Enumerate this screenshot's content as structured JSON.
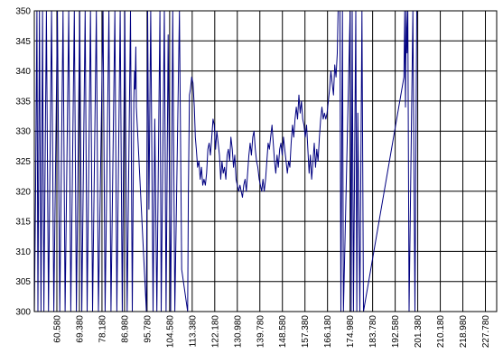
{
  "chart_data": {
    "type": "line",
    "title": "",
    "xlabel": "",
    "ylabel": "",
    "ylim": [
      300,
      350
    ],
    "y_ticks": [
      300,
      305,
      310,
      315,
      320,
      325,
      330,
      335,
      340,
      345,
      350
    ],
    "x_tick_labels": [
      "60.580",
      "69.380",
      "78.180",
      "86.980",
      "95.780",
      "104.580",
      "113.380",
      "122.180",
      "130.980",
      "139.780",
      "148.580",
      "157.380",
      "166.180",
      "174.980",
      "183.780",
      "192.580",
      "201.380",
      "210.180",
      "218.980",
      "227.780"
    ],
    "xlim": [
      51.78,
      232.18
    ],
    "grid": true,
    "legend": "none",
    "series": [
      {
        "color": "#000080",
        "points": [
          [
            51.8,
            300
          ],
          [
            52.3,
            321
          ],
          [
            52.8,
            350
          ],
          [
            53.2,
            300
          ],
          [
            53.8,
            350
          ],
          [
            54.4,
            300
          ],
          [
            55.0,
            350
          ],
          [
            55.5,
            300
          ],
          [
            56.5,
            350
          ],
          [
            57.3,
            300
          ],
          [
            58.5,
            350
          ],
          [
            59.4,
            300
          ],
          [
            60.8,
            350
          ],
          [
            61.7,
            300
          ],
          [
            63.0,
            350
          ],
          [
            63.8,
            300
          ],
          [
            65.2,
            350
          ],
          [
            66.0,
            300
          ],
          [
            67.4,
            350
          ],
          [
            68.2,
            300
          ],
          [
            69.5,
            350
          ],
          [
            70.3,
            300
          ],
          [
            71.6,
            350
          ],
          [
            72.4,
            300
          ],
          [
            73.7,
            350
          ],
          [
            74.5,
            300
          ],
          [
            76.0,
            350
          ],
          [
            76.8,
            300
          ],
          [
            78.6,
            350
          ],
          [
            79.4,
            300
          ],
          [
            80.9,
            350
          ],
          [
            81.7,
            300
          ],
          [
            83.2,
            350
          ],
          [
            84.0,
            300
          ],
          [
            85.3,
            350
          ],
          [
            86.1,
            300
          ],
          [
            87.1,
            350
          ],
          [
            88.0,
            300
          ],
          [
            89.3,
            350
          ],
          [
            90.0,
            300
          ],
          [
            90.6,
            335
          ],
          [
            90.9,
            340
          ],
          [
            91.1,
            337
          ],
          [
            91.4,
            344
          ],
          [
            91.6,
            334
          ],
          [
            95.5,
            300
          ],
          [
            96.0,
            350
          ],
          [
            96.5,
            317
          ],
          [
            97.2,
            350
          ],
          [
            98.1,
            300
          ],
          [
            98.8,
            332
          ],
          [
            99.6,
            300
          ],
          [
            100.8,
            350
          ],
          [
            101.3,
            300
          ],
          [
            102.5,
            350
          ],
          [
            103.2,
            300
          ],
          [
            104.0,
            346
          ],
          [
            105.0,
            300
          ],
          [
            105.8,
            350
          ],
          [
            106.6,
            300
          ],
          [
            108.4,
            350
          ],
          [
            109.3,
            307
          ],
          [
            111.6,
            300
          ],
          [
            111.9,
            320
          ],
          [
            112.3,
            336
          ],
          [
            112.7,
            337
          ],
          [
            113.2,
            339
          ],
          [
            113.7,
            338
          ],
          [
            114.2,
            334
          ],
          [
            114.6,
            329
          ],
          [
            115.0,
            327
          ],
          [
            115.5,
            324
          ],
          [
            116.0,
            325
          ],
          [
            116.5,
            322
          ],
          [
            117.0,
            324
          ],
          [
            117.5,
            321
          ],
          [
            118.0,
            322
          ],
          [
            118.5,
            321
          ],
          [
            119.0,
            323
          ],
          [
            119.5,
            327
          ],
          [
            120.0,
            328
          ],
          [
            120.5,
            326
          ],
          [
            121.0,
            329
          ],
          [
            121.5,
            332
          ],
          [
            122.0,
            331
          ],
          [
            122.5,
            327
          ],
          [
            123.0,
            330
          ],
          [
            123.5,
            328
          ],
          [
            124.0,
            326
          ],
          [
            124.5,
            322
          ],
          [
            125.0,
            325
          ],
          [
            125.5,
            323
          ],
          [
            126.0,
            324
          ],
          [
            126.5,
            322
          ],
          [
            127.0,
            326
          ],
          [
            127.5,
            327
          ],
          [
            128.0,
            325
          ],
          [
            128.5,
            329
          ],
          [
            129.0,
            327
          ],
          [
            129.5,
            324
          ],
          [
            130.0,
            326
          ],
          [
            130.5,
            322
          ],
          [
            131.0,
            321
          ],
          [
            131.5,
            320
          ],
          [
            132.0,
            321
          ],
          [
            132.5,
            320
          ],
          [
            133.0,
            319
          ],
          [
            133.5,
            321
          ],
          [
            134.0,
            322
          ],
          [
            134.5,
            320
          ],
          [
            135.0,
            323
          ],
          [
            135.5,
            326
          ],
          [
            136.0,
            328
          ],
          [
            136.5,
            326
          ],
          [
            137.0,
            329
          ],
          [
            137.5,
            330
          ],
          [
            138.0,
            327
          ],
          [
            138.5,
            325
          ],
          [
            139.0,
            324
          ],
          [
            139.5,
            322
          ],
          [
            140.0,
            321
          ],
          [
            140.5,
            320
          ],
          [
            141.0,
            322
          ],
          [
            141.5,
            320
          ],
          [
            142.0,
            322
          ],
          [
            142.5,
            325
          ],
          [
            143.0,
            328
          ],
          [
            143.5,
            327
          ],
          [
            144.0,
            329
          ],
          [
            144.5,
            331
          ],
          [
            145.0,
            328
          ],
          [
            145.5,
            325
          ],
          [
            146.0,
            323
          ],
          [
            146.5,
            326
          ],
          [
            147.0,
            324
          ],
          [
            147.5,
            327
          ],
          [
            148.0,
            328
          ],
          [
            148.5,
            326
          ],
          [
            149.0,
            329
          ],
          [
            149.5,
            327
          ],
          [
            150.0,
            325
          ],
          [
            150.5,
            323
          ],
          [
            151.0,
            325
          ],
          [
            151.5,
            324
          ],
          [
            152.0,
            328
          ],
          [
            152.5,
            331
          ],
          [
            153.0,
            329
          ],
          [
            153.5,
            332
          ],
          [
            154.0,
            334
          ],
          [
            154.5,
            332
          ],
          [
            155.0,
            336
          ],
          [
            155.5,
            333
          ],
          [
            156.0,
            335
          ],
          [
            156.5,
            332
          ],
          [
            157.0,
            331
          ],
          [
            157.5,
            329
          ],
          [
            158.0,
            331
          ],
          [
            158.5,
            327
          ],
          [
            159.0,
            323
          ],
          [
            159.5,
            326
          ],
          [
            160.0,
            322
          ],
          [
            160.5,
            325
          ],
          [
            161.0,
            328
          ],
          [
            161.5,
            324
          ],
          [
            162.0,
            327
          ],
          [
            162.5,
            325
          ],
          [
            163.0,
            329
          ],
          [
            163.5,
            332
          ],
          [
            164.0,
            334
          ],
          [
            164.5,
            332
          ],
          [
            165.0,
            333
          ],
          [
            165.5,
            332
          ],
          [
            166.0,
            333
          ],
          [
            166.5,
            335
          ],
          [
            167.0,
            337
          ],
          [
            167.5,
            340
          ],
          [
            168.0,
            338
          ],
          [
            168.5,
            336
          ],
          [
            169.0,
            341
          ],
          [
            169.5,
            339
          ],
          [
            170.0,
            343
          ],
          [
            170.3,
            350
          ],
          [
            171.0,
            350
          ],
          [
            171.4,
            300
          ],
          [
            172.0,
            350
          ],
          [
            172.4,
            300
          ],
          [
            175.0,
            350
          ],
          [
            175.4,
            300
          ],
          [
            175.8,
            350
          ],
          [
            176.3,
            300
          ],
          [
            177.2,
            350
          ],
          [
            177.6,
            300
          ],
          [
            178.0,
            333
          ],
          [
            178.8,
            300
          ],
          [
            179.6,
            350
          ],
          [
            180.2,
            300
          ],
          [
            196.0,
            339
          ],
          [
            196.3,
            350
          ],
          [
            196.6,
            334
          ],
          [
            196.9,
            350
          ],
          [
            197.2,
            343
          ],
          [
            197.5,
            350
          ],
          [
            198.0,
            300
          ],
          [
            199.5,
            350
          ],
          [
            200.3,
            300
          ],
          [
            201.0,
            350
          ]
        ]
      }
    ]
  }
}
